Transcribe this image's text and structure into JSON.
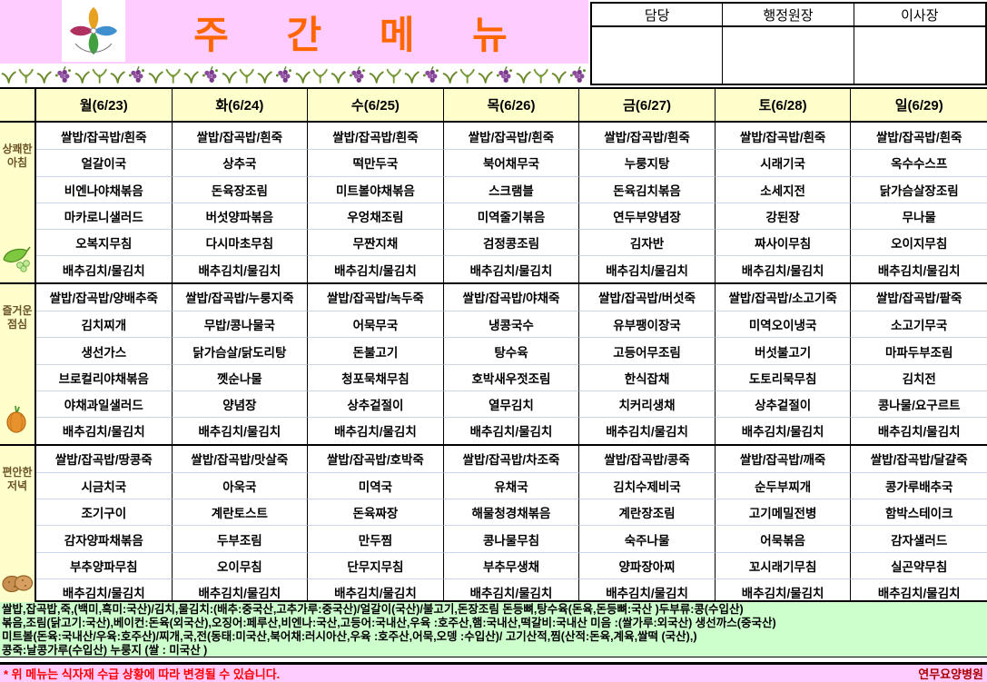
{
  "title": "주 간 메 뉴",
  "approval": {
    "columns": [
      "담당",
      "행정원장",
      "이사장"
    ]
  },
  "week": {
    "days": [
      "월(6/23)",
      "화(6/24)",
      "수(6/25)",
      "목(6/26)",
      "금(6/27)",
      "토(6/28)",
      "일(6/29)"
    ]
  },
  "sections": [
    {
      "label": "상쾌한 아침",
      "icon": "pea-icon",
      "rows": [
        [
          "쌀밥/잡곡밥/흰죽",
          "쌀밥/잡곡밥/흰죽",
          "쌀밥/잡곡밥/흰죽",
          "쌀밥/잡곡밥/흰죽",
          "쌀밥/잡곡밥/흰죽",
          "쌀밥/잡곡밥/흰죽",
          "쌀밥/잡곡밥/흰죽"
        ],
        [
          "얼갈이국",
          "상추국",
          "떡만두국",
          "북어채무국",
          "누룽지탕",
          "시래기국",
          "옥수수스프"
        ],
        [
          "비엔나야채볶음",
          "돈육장조림",
          "미트볼야채볶음",
          "스크램블",
          "돈육김치볶음",
          "소세지전",
          "닭가슴살장조림"
        ],
        [
          "마카로니샐러드",
          "버섯양파볶음",
          "우엉채조림",
          "미역줄기볶음",
          "연두부양념장",
          "강된장",
          "무나물"
        ],
        [
          "오복지무침",
          "다시마초무침",
          "무짠지채",
          "검정콩조림",
          "김자반",
          "짜사이무침",
          "오이지무침"
        ],
        [
          "배추김치/물김치",
          "배추김치/물김치",
          "배추김치/물김치",
          "배추김치/물김치",
          "배추김치/물김치",
          "배추김치/물김치",
          "배추김치/물김치"
        ]
      ]
    },
    {
      "label": "즐거운 점심",
      "icon": "onion-icon",
      "rows": [
        [
          "쌀밥/잡곡밥/양배추죽",
          "쌀밥/잡곡밥/누룽지죽",
          "쌀밥/잡곡밥/녹두죽",
          "쌀밥/잡곡밥/야채죽",
          "쌀밥/잡곡밥/버섯죽",
          "쌀밥/잡곡밥/소고기죽",
          "쌀밥/잡곡밥/팥죽"
        ],
        [
          "김치찌개",
          "무밥/콩나물국",
          "어묵무국",
          "냉콩국수",
          "유부팽이장국",
          "미역오이냉국",
          "소고기무국"
        ],
        [
          "생선가스",
          "닭가슴살/닭도리탕",
          "돈불고기",
          "탕수육",
          "고등어무조림",
          "버섯불고기",
          "마파두부조림"
        ],
        [
          "브로컬리야채볶음",
          "껫순나물",
          "청포묵채무침",
          "호박새우젓조림",
          "한식잡채",
          "도토리묵무침",
          "김치전"
        ],
        [
          "야채과일샐러드",
          "양념장",
          "상추겉절이",
          "열무김치",
          "치커리생채",
          "상추겉절이",
          "콩나물/요구르트"
        ],
        [
          "배추김치/물김치",
          "배추김치/물김치",
          "배추김치/물김치",
          "배추김치/물김치",
          "배추김치/물김치",
          "배추김치/물김치",
          "배추김치/물김치"
        ]
      ]
    },
    {
      "label": "편안한 저녁",
      "icon": "potato-icon",
      "rows": [
        [
          "쌀밥/잡곡밥/땅콩죽",
          "쌀밥/잡곡밥/맛살죽",
          "쌀밥/잡곡밥/호박죽",
          "쌀밥/잡곡밥/차조죽",
          "쌀밥/잡곡밥/콩죽",
          "쌀밥/잡곡밥/깨죽",
          "쌀밥/잡곡밥/달걀죽"
        ],
        [
          "시금치국",
          "아욱국",
          "미역국",
          "유채국",
          "김치수제비국",
          "순두부찌개",
          "콩가루배추국"
        ],
        [
          "조기구이",
          "계란토스트",
          "돈육짜장",
          "해물청경채볶음",
          "계란장조림",
          "고기메밀전병",
          "함박스테이크"
        ],
        [
          "감자양파채볶음",
          "두부조림",
          "만두찜",
          "콩나물무침",
          "숙주나물",
          "어묵볶음",
          "감자샐러드"
        ],
        [
          "부추양파무침",
          "오이무침",
          "단무지무침",
          "부추무생채",
          "양파장아찌",
          "꼬시래기무침",
          "실곤약무침"
        ],
        [
          "배추김치/물김치",
          "배추김치/물김치",
          "배추김치/물김치",
          "배추김치/물김치",
          "배추김치/물김치",
          "배추김치/물김치",
          "배추김치/물김치"
        ]
      ]
    }
  ],
  "origin_notes": [
    "쌀밥,잡곡밥,죽,(백미,흑미:국산)/김치,물김치:(배추:중국산,고추가루:중국산)/얼갈이(국산)/불고기,돈장조림 돈등뼈,탕수육(돈육,돈등뼈:국산 )두부류:콩(수입산)",
    "볶음,조림(닭고기:국산),베이컨:돈육(외국산),오징어:페루산,비엔나:국산,고등어:국내산,우육 :호주산,햄:국내산,떡갈비:국내산 미음 :(쌀가루:외국산) 생선까스(중국산)",
    "미트볼(돈육:국내산/우육:호주산)/찌개,국,전(동태:미국산,북어채:러시아산,우육 :호주산,어묵,오뎅 :수입산)/ 고기산적,찜(산적:돈육,계육,쌀떡 (국산),)",
    "콩죽:날콩가루(수입산)  누룽지 (쌀 : 미국산 )"
  ],
  "footer": {
    "notice": "* 위 메뉴는 식자재 수급 상황에 따라 변경될 수 있습니다.",
    "hospital": "연무요양병원"
  },
  "colors": {
    "banner_pink": "#ffccff",
    "header_yellow": "#ffffcc",
    "notes_green": "#ccffcc",
    "title_orange": "#ff6600",
    "notice_red": "#ff0000",
    "hospital_red": "#aa0000"
  }
}
